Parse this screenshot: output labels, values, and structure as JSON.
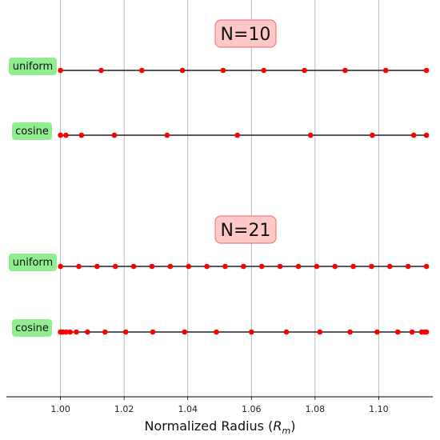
{
  "chart_data": {
    "type": "scatter",
    "title": "",
    "xlabel": "Normalized Radius (R_m)",
    "xlabel_main": "Normalized Radius (",
    "xlabel_symbol": "R",
    "xlabel_subscript": "m",
    "xlabel_close": ")",
    "ylabel": "",
    "xlim": [
      0.983,
      1.117
    ],
    "x_ticks": [
      1.0,
      1.02,
      1.04,
      1.06,
      1.08,
      1.1
    ],
    "x_tick_labels": [
      "1.00",
      "1.02",
      "1.04",
      "1.06",
      "1.08",
      "1.10"
    ],
    "grid": "vertical",
    "colors": {
      "marker": "#ff0000",
      "line": "#222222",
      "label_box": "#90ee90",
      "n_box": "#ffc8c8",
      "n_border": "#f08080",
      "grid": "#b0b0b0"
    },
    "groups": [
      {
        "label": "N=10",
        "series": [
          {
            "name": "uniform",
            "x": [
              1.0,
              1.01278,
              1.02556,
              1.03833,
              1.05111,
              1.06389,
              1.07667,
              1.08944,
              1.10222,
              1.115
            ]
          },
          {
            "name": "cosine",
            "x": [
              1.0,
              1.0017,
              1.00659,
              1.01692,
              1.0335,
              1.0556,
              1.0786,
              1.098,
              1.111,
              1.115
            ]
          }
        ]
      },
      {
        "label": "N=21",
        "series": [
          {
            "name": "uniform",
            "x": [
              1.0,
              1.00575,
              1.0115,
              1.01725,
              1.023,
              1.02875,
              1.0345,
              1.04025,
              1.046,
              1.05175,
              1.0575,
              1.06325,
              1.069,
              1.07475,
              1.0805,
              1.08625,
              1.092,
              1.09775,
              1.1035,
              1.10925,
              1.115
            ]
          },
          {
            "name": "cosine",
            "x": [
              1.0,
              1.0007,
              1.0017,
              1.003,
              1.005,
              1.0085,
              1.014,
              1.0205,
              1.029,
              1.039,
              1.049,
              1.06,
              1.071,
              1.0815,
              1.091,
              1.0995,
              1.106,
              1.1105,
              1.1135,
              1.1145,
              1.115
            ]
          }
        ]
      }
    ]
  }
}
